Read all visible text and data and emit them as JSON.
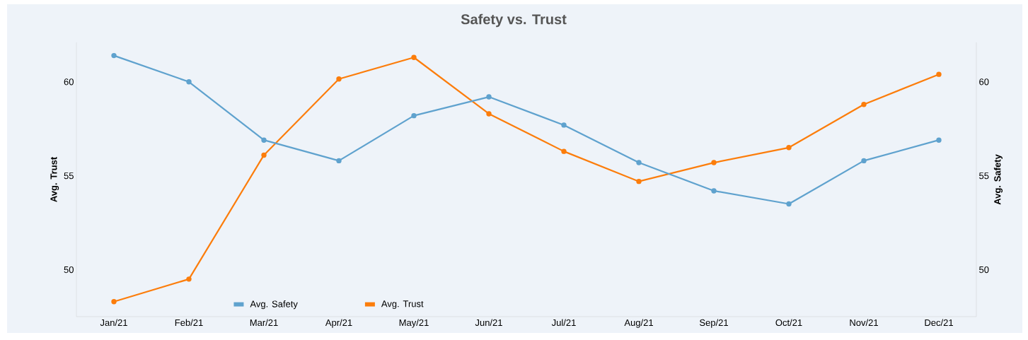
{
  "chart_data": {
    "type": "line",
    "title": "Safety vs. Trust",
    "categories": [
      "Jan/21",
      "Feb/21",
      "Mar/21",
      "Apr/21",
      "May/21",
      "Jun/21",
      "Jul/21",
      "Aug/21",
      "Sep/21",
      "Oct/21",
      "Nov/21",
      "Dec/21"
    ],
    "series": [
      {
        "name": "Avg. Safety",
        "color": "#5fa2ce",
        "axis": "y2",
        "values": [
          61.4,
          60.0,
          56.9,
          55.8,
          58.2,
          59.2,
          57.7,
          55.7,
          54.2,
          53.5,
          55.8,
          56.9
        ]
      },
      {
        "name": "Avg. Trust",
        "color": "#fc7d0b",
        "values": [
          48.3,
          49.5,
          56.1,
          60.15,
          61.3,
          58.3,
          56.3,
          54.7,
          55.7,
          56.5,
          58.8,
          60.4
        ]
      }
    ],
    "ylabel": "Avg. Trust",
    "y2label": "Avg. Safety",
    "ylim": [
      47.5,
      62.1
    ],
    "yticks": [
      50,
      55,
      60
    ],
    "y2lim": [
      47.5,
      62.1
    ],
    "y2ticks": [
      50,
      55,
      60
    ],
    "marker": "circle",
    "line_style": "solid",
    "legend": "bottom left",
    "grid": false
  }
}
